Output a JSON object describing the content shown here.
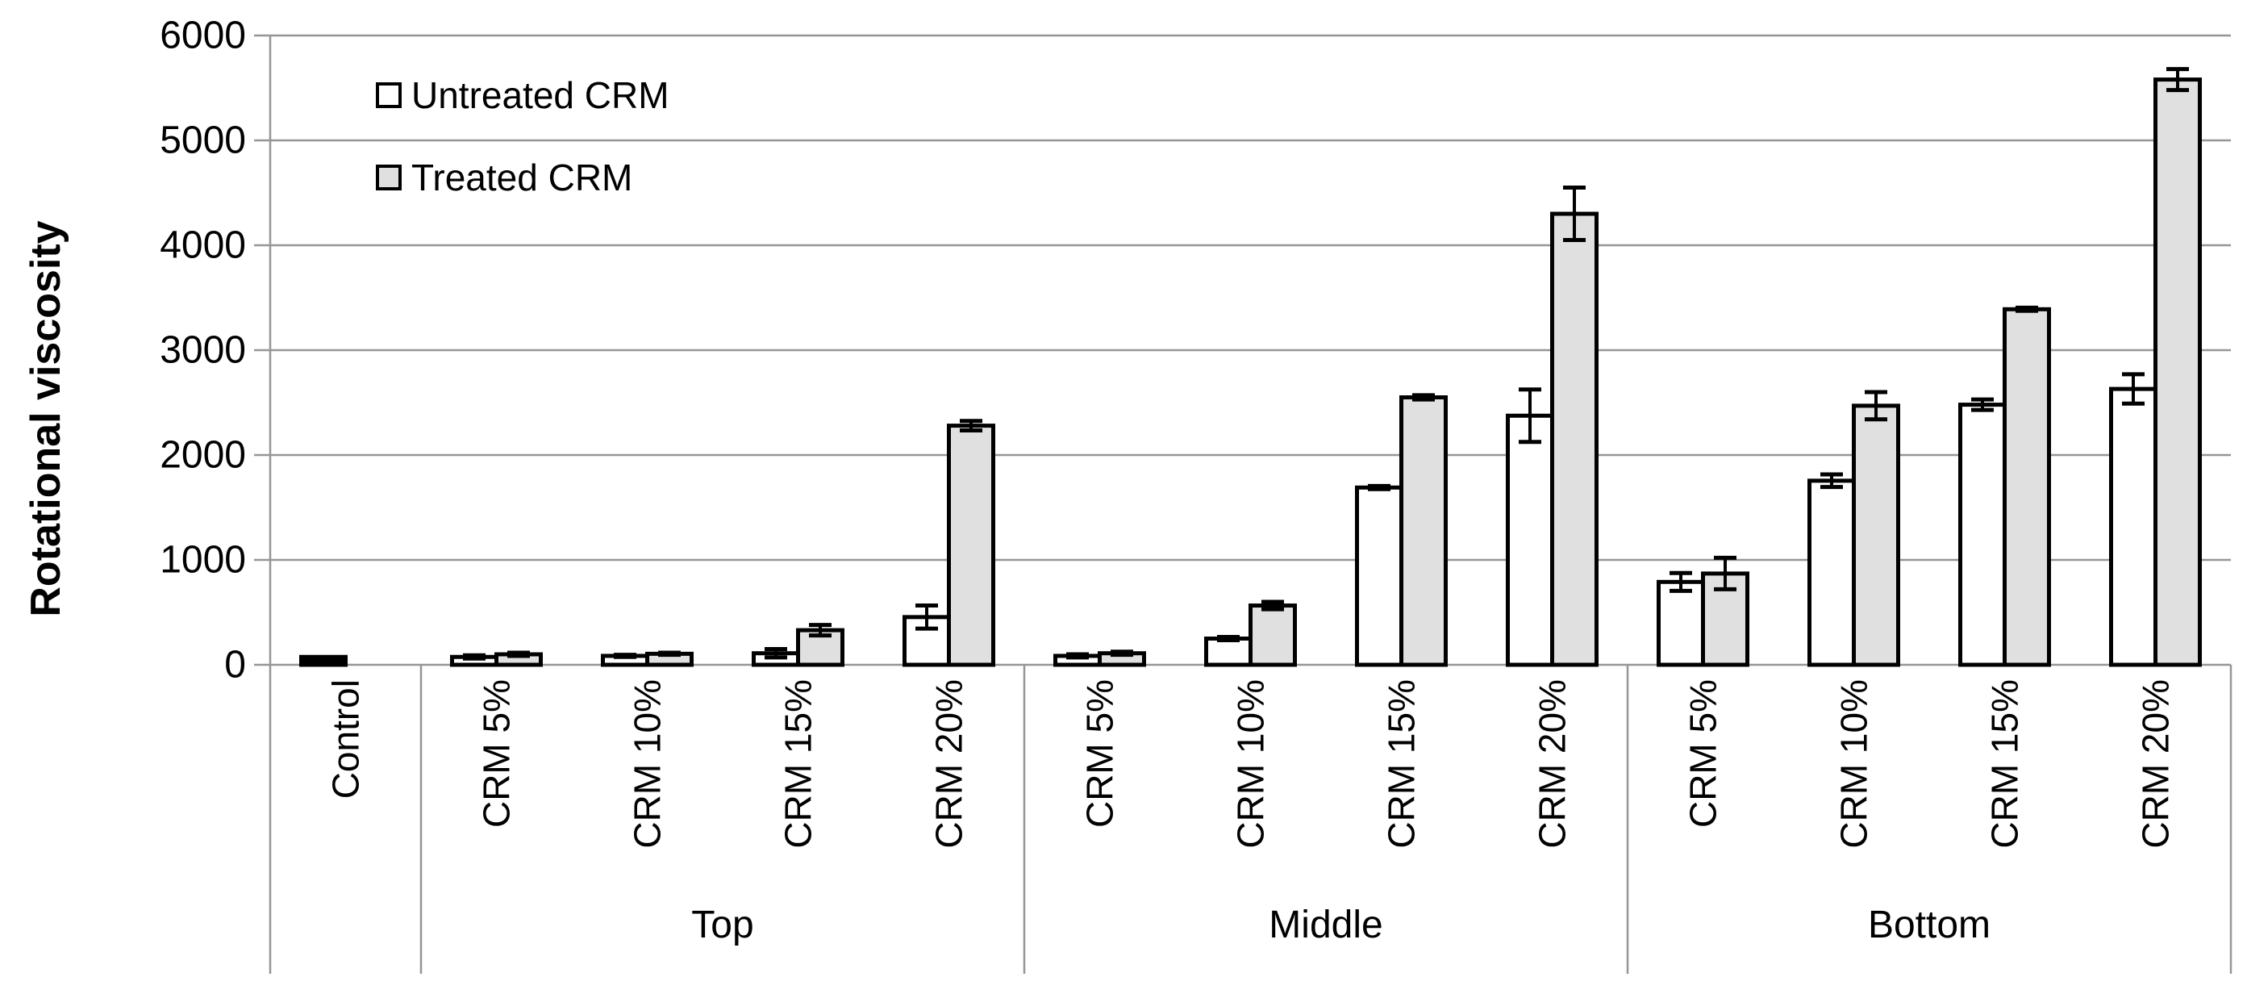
{
  "chart_data": {
    "type": "bar",
    "title": "",
    "xlabel": "",
    "ylabel": "Rotational viscosity",
    "ylim": [
      0,
      6000
    ],
    "yticks": [
      0,
      1000,
      2000,
      3000,
      4000,
      5000,
      6000
    ],
    "grid": true,
    "legend_position": "inside-top-left",
    "categories": [
      "Control",
      "CRM 5%",
      "CRM 10%",
      "CRM 15%",
      "CRM 20%",
      "CRM 5%",
      "CRM 10%",
      "CRM 15%",
      "CRM 20%",
      "CRM 5%",
      "CRM 10%",
      "CRM 15%",
      "CRM 20%"
    ],
    "group_labels": [
      {
        "label": "",
        "start": 0,
        "span": 1
      },
      {
        "label": "Top",
        "start": 1,
        "span": 4
      },
      {
        "label": "Middle",
        "start": 5,
        "span": 4
      },
      {
        "label": "Bottom",
        "start": 9,
        "span": 4
      }
    ],
    "series": [
      {
        "name": "Untreated CRM",
        "fill": "#FFFFFF",
        "values": [
          75,
          75,
          85,
          110,
          455,
          85,
          250,
          1690,
          2375,
          790,
          1755,
          2480,
          2630
        ],
        "errors": [
          null,
          15,
          10,
          40,
          110,
          15,
          15,
          15,
          250,
          85,
          60,
          50,
          140
        ]
      },
      {
        "name": "Treated CRM",
        "fill": "#E0E0E0",
        "values": [
          null,
          100,
          105,
          330,
          2280,
          110,
          565,
          2550,
          4300,
          870,
          2470,
          3390,
          5580
        ],
        "errors": [
          null,
          15,
          10,
          50,
          45,
          15,
          35,
          20,
          250,
          150,
          130,
          15,
          100
        ]
      }
    ],
    "bar_fill_overrides": [
      {
        "series": 0,
        "index": 0,
        "fill": "#000000"
      }
    ],
    "colors": {
      "grid": "#969696",
      "axis": "#969696",
      "bar_border": "#000000",
      "error_bar": "#000000",
      "text": "#000000",
      "background": "#FFFFFF"
    }
  }
}
